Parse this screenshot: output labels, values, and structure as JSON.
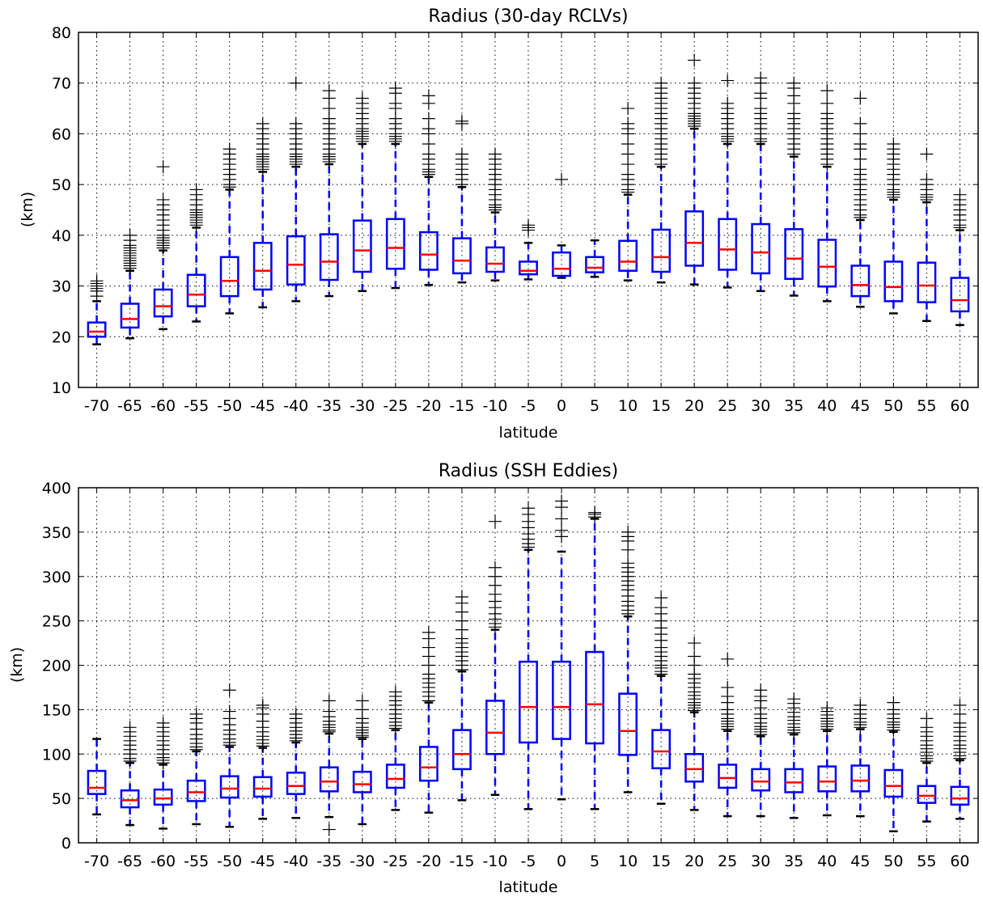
{
  "chart_data": [
    {
      "type": "box",
      "title": "Radius (30-day RCLVs)",
      "xlabel": "latitude",
      "ylabel": "(km)",
      "ylim": [
        10,
        80
      ],
      "yticks": [
        "10",
        "20",
        "30",
        "40",
        "50",
        "60",
        "70",
        "80"
      ],
      "grid": true,
      "categories": [
        "-70",
        "-65",
        "-60",
        "-55",
        "-50",
        "-45",
        "-40",
        "-35",
        "-30",
        "-25",
        "-20",
        "-15",
        "-10",
        "-5",
        "0",
        "5",
        "10",
        "15",
        "20",
        "25",
        "30",
        "35",
        "40",
        "45",
        "50",
        "55",
        "60"
      ],
      "boxes": [
        {
          "whislo": 18.5,
          "q1": 20,
          "med": 21,
          "q3": 22.8,
          "whishi": 27,
          "fliers": [
            28,
            29,
            29.5,
            30,
            30.5,
            31
          ]
        },
        {
          "whislo": 19.7,
          "q1": 21.8,
          "med": 23.5,
          "q3": 26.5,
          "whishi": 33,
          "fliers": [
            33.5,
            34,
            34.5,
            35,
            35.5,
            36,
            36.5,
            37,
            37.5,
            38,
            39,
            40
          ]
        },
        {
          "whislo": 21.5,
          "q1": 24,
          "med": 26,
          "q3": 29.3,
          "whishi": 37,
          "fliers": [
            37.5,
            38,
            38.5,
            39,
            39.5,
            40,
            41,
            42,
            43,
            44,
            45,
            46,
            47,
            53.5
          ]
        },
        {
          "whislo": 23,
          "q1": 26,
          "med": 28.3,
          "q3": 32.2,
          "whishi": 41.5,
          "fliers": [
            42,
            42.5,
            43,
            43.5,
            44,
            44.5,
            45,
            46,
            47,
            48,
            49
          ]
        },
        {
          "whislo": 24.6,
          "q1": 28,
          "med": 31,
          "q3": 35.7,
          "whishi": 49,
          "fliers": [
            49.5,
            50,
            51,
            52,
            53,
            54,
            55,
            56,
            57
          ]
        },
        {
          "whislo": 25.8,
          "q1": 29.3,
          "med": 33,
          "q3": 38.5,
          "whishi": 52.5,
          "fliers": [
            53,
            53.5,
            54,
            54.5,
            55,
            55.5,
            56,
            57,
            58,
            59,
            60,
            61,
            62
          ]
        },
        {
          "whislo": 27,
          "q1": 30.3,
          "med": 34.2,
          "q3": 39.8,
          "whishi": 53.5,
          "fliers": [
            54,
            54.5,
            55,
            55.5,
            56,
            57,
            58,
            59,
            60,
            61,
            62,
            70
          ]
        },
        {
          "whislo": 28,
          "q1": 31.2,
          "med": 34.8,
          "q3": 40.2,
          "whishi": 54,
          "fliers": [
            54.5,
            55,
            55.5,
            56,
            57,
            58,
            59,
            60,
            61,
            62,
            63,
            65,
            67,
            68.5
          ]
        },
        {
          "whislo": 29,
          "q1": 32.8,
          "med": 37,
          "q3": 42.9,
          "whishi": 58,
          "fliers": [
            58.5,
            59,
            59.5,
            60,
            60.5,
            61,
            62,
            63,
            64,
            65,
            66,
            67
          ]
        },
        {
          "whislo": 29.6,
          "q1": 33.4,
          "med": 37.5,
          "q3": 43.2,
          "whishi": 58,
          "fliers": [
            58.5,
            59,
            59.5,
            60,
            61,
            62,
            63,
            65,
            66,
            68,
            69
          ]
        },
        {
          "whislo": 30.2,
          "q1": 33.2,
          "med": 36.2,
          "q3": 40.6,
          "whishi": 51.5,
          "fliers": [
            52,
            52.5,
            53,
            54,
            55,
            56,
            58,
            60,
            61,
            63,
            66,
            67.5
          ]
        },
        {
          "whislo": 30.7,
          "q1": 32.5,
          "med": 35,
          "q3": 39.4,
          "whishi": 49.5,
          "fliers": [
            50,
            51,
            52,
            53,
            54,
            55,
            56,
            62,
            62.5
          ]
        },
        {
          "whislo": 31.1,
          "q1": 32.8,
          "med": 34.4,
          "q3": 37.6,
          "whishi": 44.5,
          "fliers": [
            45,
            45.5,
            46,
            47,
            48,
            49,
            50,
            51,
            52,
            53,
            54,
            55,
            56
          ]
        },
        {
          "whislo": 31.3,
          "q1": 32.3,
          "med": 33,
          "q3": 34.8,
          "whishi": 38.5,
          "fliers": [
            41,
            41.5,
            42
          ]
        },
        {
          "whislo": 31.6,
          "q1": 32,
          "med": 33.4,
          "q3": 36.6,
          "whishi": 38,
          "fliers": [
            51
          ]
        },
        {
          "whislo": 31.8,
          "q1": 32.7,
          "med": 33.6,
          "q3": 35.7,
          "whishi": 39,
          "fliers": []
        },
        {
          "whislo": 31.1,
          "q1": 33,
          "med": 34.8,
          "q3": 38.9,
          "whishi": 48,
          "fliers": [
            48.5,
            49,
            50,
            51,
            52,
            54,
            56,
            58,
            60,
            61,
            62,
            65
          ]
        },
        {
          "whislo": 30.7,
          "q1": 32.8,
          "med": 35.7,
          "q3": 41.1,
          "whishi": 53.5,
          "fliers": [
            54,
            55,
            56,
            57,
            58,
            59,
            60,
            61,
            62,
            63,
            64,
            65,
            66,
            67,
            68,
            69,
            70
          ]
        },
        {
          "whislo": 30.3,
          "q1": 34,
          "med": 38.5,
          "q3": 44.7,
          "whishi": 61,
          "fliers": [
            61.5,
            62,
            62.5,
            63,
            63.5,
            64,
            65,
            66,
            67,
            68,
            69,
            70,
            74.5
          ]
        },
        {
          "whislo": 29.7,
          "q1": 33.2,
          "med": 37.2,
          "q3": 43.2,
          "whishi": 58,
          "fliers": [
            58.5,
            59,
            59.5,
            60,
            61,
            62,
            63,
            64,
            65,
            66,
            70.5
          ]
        },
        {
          "whislo": 29,
          "q1": 32.5,
          "med": 36.6,
          "q3": 42.2,
          "whishi": 58,
          "fliers": [
            58.5,
            59,
            60,
            61,
            62,
            63,
            64,
            65,
            67,
            68,
            70,
            71
          ]
        },
        {
          "whislo": 28.1,
          "q1": 31.4,
          "med": 35.4,
          "q3": 41.2,
          "whishi": 55.5,
          "fliers": [
            56,
            57,
            58,
            59,
            60,
            61,
            62,
            63,
            64,
            66,
            67.5,
            69,
            70
          ]
        },
        {
          "whislo": 27,
          "q1": 29.9,
          "med": 33.8,
          "q3": 39.1,
          "whishi": 53.5,
          "fliers": [
            54,
            55,
            56,
            57,
            58,
            59,
            60,
            61,
            62,
            63,
            64,
            66,
            68.5
          ]
        },
        {
          "whislo": 25.9,
          "q1": 28,
          "med": 30.2,
          "q3": 34,
          "whishi": 43,
          "fliers": [
            43.5,
            44,
            45,
            46,
            47,
            48,
            49,
            50,
            51,
            52,
            53,
            55,
            57,
            58,
            60,
            62,
            67
          ]
        },
        {
          "whislo": 24.6,
          "q1": 27,
          "med": 29.8,
          "q3": 34.8,
          "whishi": 47,
          "fliers": [
            47.5,
            48,
            48.5,
            49,
            50,
            51,
            52,
            53,
            54,
            55,
            56,
            57,
            58
          ]
        },
        {
          "whislo": 23.1,
          "q1": 26.8,
          "med": 30.1,
          "q3": 34.6,
          "whishi": 46.5,
          "fliers": [
            47,
            47.5,
            48,
            49,
            50,
            51,
            56
          ]
        },
        {
          "whislo": 22.3,
          "q1": 25,
          "med": 27.2,
          "q3": 31.6,
          "whishi": 41,
          "fliers": [
            41.5,
            42,
            43,
            44,
            45,
            46,
            47,
            48
          ]
        }
      ]
    },
    {
      "type": "box",
      "title": "Radius (SSH Eddies)",
      "xlabel": "latitude",
      "ylabel": "(km)",
      "ylim": [
        0,
        400
      ],
      "yticks": [
        "0",
        "50",
        "100",
        "150",
        "200",
        "250",
        "300",
        "350",
        "400"
      ],
      "grid": true,
      "categories": [
        "-70",
        "-65",
        "-60",
        "-55",
        "-50",
        "-45",
        "-40",
        "-35",
        "-30",
        "-25",
        "-20",
        "-15",
        "-10",
        "-5",
        "0",
        "5",
        "10",
        "15",
        "20",
        "25",
        "30",
        "35",
        "40",
        "45",
        "50",
        "55",
        "60"
      ],
      "boxes": [
        {
          "whislo": 32,
          "q1": 55,
          "med": 62,
          "q3": 81,
          "whishi": 117,
          "fliers": []
        },
        {
          "whislo": 20,
          "q1": 40,
          "med": 48,
          "q3": 59,
          "whishi": 90,
          "fliers": [
            92,
            95,
            100,
            105,
            110,
            115,
            120,
            125,
            130
          ]
        },
        {
          "whislo": 16,
          "q1": 43,
          "med": 50,
          "q3": 60,
          "whishi": 88,
          "fliers": [
            90,
            93,
            96,
            100,
            105,
            110,
            115,
            120,
            125,
            130,
            135
          ]
        },
        {
          "whislo": 21,
          "q1": 47,
          "med": 57,
          "q3": 70,
          "whishi": 103,
          "fliers": [
            105,
            108,
            112,
            117,
            122,
            128,
            135,
            140,
            145
          ]
        },
        {
          "whislo": 18,
          "q1": 51,
          "med": 61,
          "q3": 75,
          "whishi": 108,
          "fliers": [
            110,
            113,
            117,
            122,
            127,
            133,
            140,
            148,
            172
          ]
        },
        {
          "whislo": 27,
          "q1": 52,
          "med": 61,
          "q3": 74,
          "whishi": 107,
          "fliers": [
            109,
            112,
            116,
            120,
            125,
            130,
            137,
            145,
            152,
            155
          ]
        },
        {
          "whislo": 28,
          "q1": 55,
          "med": 64,
          "q3": 79,
          "whishi": 113,
          "fliers": [
            115,
            118,
            122,
            126,
            130,
            135,
            140,
            145
          ]
        },
        {
          "whislo": 29,
          "q1": 58,
          "med": 69,
          "q3": 85,
          "whishi": 123,
          "fliers": [
            15,
            125,
            127,
            130,
            133,
            137,
            142,
            148,
            160
          ]
        },
        {
          "whislo": 21,
          "q1": 57,
          "med": 66,
          "q3": 80,
          "whishi": 117,
          "fliers": [
            119,
            121,
            124,
            127,
            130,
            135,
            140,
            150,
            160
          ]
        },
        {
          "whislo": 37,
          "q1": 62,
          "med": 72,
          "q3": 88,
          "whishi": 127,
          "fliers": [
            129,
            132,
            136,
            140,
            145,
            150,
            155,
            160,
            165,
            170
          ]
        },
        {
          "whislo": 34,
          "q1": 70,
          "med": 85,
          "q3": 108,
          "whishi": 158,
          "fliers": [
            160,
            165,
            170,
            175,
            180,
            185,
            190,
            200,
            210,
            220,
            230,
            237
          ]
        },
        {
          "whislo": 48,
          "q1": 83,
          "med": 100,
          "q3": 127,
          "whishi": 193,
          "fliers": [
            195,
            200,
            205,
            210,
            215,
            220,
            225,
            230,
            240,
            250,
            260,
            270,
            277
          ]
        },
        {
          "whislo": 54,
          "q1": 100,
          "med": 124,
          "q3": 160,
          "whishi": 240,
          "fliers": [
            243,
            247,
            252,
            258,
            265,
            272,
            280,
            290,
            300,
            310,
            362
          ]
        },
        {
          "whislo": 38,
          "q1": 113,
          "med": 153,
          "q3": 204,
          "whishi": 330,
          "fliers": [
            333,
            337,
            342,
            348,
            355,
            362,
            370,
            377
          ]
        },
        {
          "whislo": 49,
          "q1": 117,
          "med": 153,
          "q3": 204,
          "whishi": 328,
          "fliers": [
            345,
            352,
            365,
            378,
            385
          ]
        },
        {
          "whislo": 38,
          "q1": 112,
          "med": 156,
          "q3": 215,
          "whishi": 365,
          "fliers": [
            367,
            370,
            372
          ]
        },
        {
          "whislo": 57,
          "q1": 99,
          "med": 126,
          "q3": 168,
          "whishi": 255,
          "fliers": [
            258,
            262,
            267,
            272,
            278,
            285,
            290,
            295,
            300,
            305,
            310,
            315,
            330,
            340,
            345,
            350
          ]
        },
        {
          "whislo": 44,
          "q1": 84,
          "med": 103,
          "q3": 127,
          "whishi": 188,
          "fliers": [
            190,
            193,
            197,
            200,
            205,
            210,
            215,
            220,
            228,
            235,
            242,
            250,
            258,
            265,
            276
          ]
        },
        {
          "whislo": 37,
          "q1": 69,
          "med": 83,
          "q3": 100,
          "whishi": 147,
          "fliers": [
            149,
            152,
            155,
            158,
            162,
            166,
            170,
            175,
            180,
            185,
            190,
            200,
            210,
            225
          ]
        },
        {
          "whislo": 30,
          "q1": 62,
          "med": 73,
          "q3": 88,
          "whishi": 126,
          "fliers": [
            128,
            131,
            134,
            137,
            140,
            145,
            150,
            158,
            165,
            175,
            207
          ]
        },
        {
          "whislo": 30,
          "q1": 59,
          "med": 69,
          "q3": 83,
          "whishi": 120,
          "fliers": [
            122,
            125,
            128,
            131,
            135,
            140,
            145,
            152,
            160,
            165,
            172
          ]
        },
        {
          "whislo": 28,
          "q1": 57,
          "med": 68,
          "q3": 83,
          "whishi": 122,
          "fliers": [
            124,
            127,
            130,
            134,
            138,
            142,
            147,
            152,
            157,
            162
          ]
        },
        {
          "whislo": 31,
          "q1": 58,
          "med": 69,
          "q3": 86,
          "whishi": 126,
          "fliers": [
            128,
            131,
            134,
            137,
            140,
            144,
            148,
            152
          ]
        },
        {
          "whislo": 30,
          "q1": 58,
          "med": 70,
          "q3": 87,
          "whishi": 128,
          "fliers": [
            130,
            133,
            136,
            140,
            145,
            150,
            155
          ]
        },
        {
          "whislo": 13,
          "q1": 52,
          "med": 64,
          "q3": 82,
          "whishi": 125,
          "fliers": [
            127,
            130,
            133,
            136,
            140,
            145,
            150,
            158
          ]
        },
        {
          "whislo": 24,
          "q1": 45,
          "med": 53,
          "q3": 64,
          "whishi": 90,
          "fliers": [
            92,
            95,
            98,
            102,
            106,
            110,
            115,
            120,
            125,
            130,
            140
          ]
        },
        {
          "whislo": 27,
          "q1": 43,
          "med": 50,
          "q3": 63,
          "whishi": 93,
          "fliers": [
            95,
            98,
            102,
            106,
            110,
            115,
            120,
            125,
            130,
            135,
            145,
            155
          ]
        }
      ]
    }
  ]
}
